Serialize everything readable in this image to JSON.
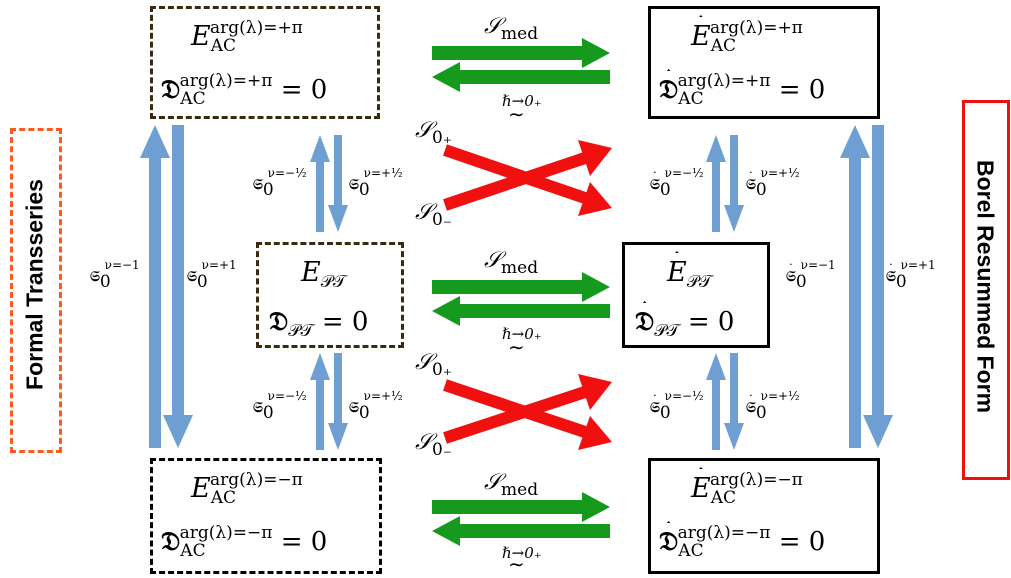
{
  "side_labels": {
    "left": "Formal Transseries",
    "right": "Borel Resummed Form"
  },
  "boxes": {
    "top_left": {
      "line1": "E",
      "line1_sub": "AC",
      "line1_sup": "arg(λ)=+π",
      "line2_symbol": "𝔇",
      "line2_sub": "AC",
      "line2_sup": "arg(λ)=+π",
      "line2_eq": "= 0"
    },
    "top_right": {
      "line1": "E",
      "line1_sub": "AC",
      "line1_sup": "arg(λ)=+π",
      "line2_symbol": "𝔇",
      "line2_sub": "AC",
      "line2_sup": "arg(λ)=+π",
      "line2_eq": "= 0"
    },
    "mid_left": {
      "line1": "E",
      "line1_sub": "𝒫𝒯",
      "line2_symbol": "𝔇",
      "line2_sub": "𝒫𝒯",
      "line2_eq": "= 0"
    },
    "mid_right": {
      "line1": "E",
      "line1_sub": "𝒫𝒯",
      "line2_symbol": "𝔇",
      "line2_sub": "𝒫𝒯",
      "line2_eq": "= 0"
    },
    "bot_left": {
      "line1": "E",
      "line1_sub": "AC",
      "line1_sup": "arg(λ)=−π",
      "line2_symbol": "𝔇",
      "line2_sub": "AC",
      "line2_sup": "arg(λ)=−π",
      "line2_eq": "= 0"
    },
    "bot_right": {
      "line1": "E",
      "line1_sub": "AC",
      "line1_sup": "arg(λ)=−π",
      "line2_symbol": "𝔇",
      "line2_sub": "AC",
      "line2_sup": "arg(λ)=−π",
      "line2_eq": "= 0"
    }
  },
  "horizontal_labels": {
    "smed": "𝒮",
    "smed_sub": "med",
    "hbar_limit": "ℏ→0₊",
    "tilde": "∼"
  },
  "cross_labels": {
    "s_plus": "𝒮",
    "s_plus_sub": "0₊",
    "s_minus": "𝒮",
    "s_minus_sub": "0₋"
  },
  "stokes_labels": {
    "symbol": "𝔖",
    "sub": "0",
    "nu_minus_half": "ν=−½",
    "nu_plus_half": "ν=+½",
    "nu_minus_one": "ν=−1",
    "nu_plus_one": "ν=+1"
  },
  "colors": {
    "green": "#159a1e",
    "red": "#f01010",
    "blue": "#6f9fd2",
    "orange": "#ff5a1e",
    "red_border": "#ee1111",
    "brown": "#3a2a10"
  }
}
